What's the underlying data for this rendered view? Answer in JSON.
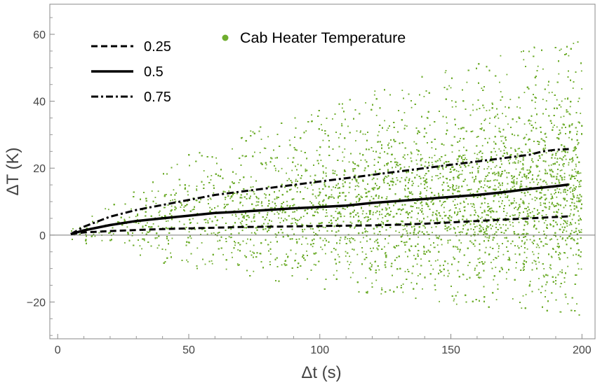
{
  "chart_data": {
    "type": "scatter",
    "title": "",
    "xlabel": "Δt (s)",
    "ylabel": "ΔT (K)",
    "xlim": [
      -3,
      205
    ],
    "ylim": [
      -31,
      69
    ],
    "x_ticks": [
      0,
      50,
      100,
      150,
      200
    ],
    "y_ticks": [
      -20,
      0,
      20,
      40,
      60
    ],
    "x_tick_labels": [
      "0",
      "50",
      "100",
      "150",
      "200"
    ],
    "y_tick_labels": [
      "−20",
      "0",
      "20",
      "40",
      "60"
    ],
    "grid": false,
    "scatter_series": {
      "name": "Cab Heater Temperature",
      "color": "#6fad2e",
      "envelope": {
        "x": [
          0,
          25,
          50,
          75,
          100,
          125,
          150,
          175,
          200
        ],
        "upper": [
          0,
          14,
          24,
          32,
          38,
          44,
          50,
          55,
          60
        ],
        "lower": [
          0,
          -6,
          -10,
          -13,
          -16,
          -18,
          -21,
          -22,
          -24
        ],
        "dense_upper": [
          0,
          9,
          15,
          20,
          24,
          28,
          32,
          35,
          38
        ],
        "dense_lower": [
          0,
          -3,
          -5,
          -7,
          -8,
          -9,
          -10,
          -11,
          -12
        ]
      }
    },
    "quantile_series": [
      {
        "name": "0.25",
        "style": "dashed",
        "x": [
          5,
          10,
          20,
          30,
          40,
          50,
          60,
          70,
          80,
          90,
          100,
          110,
          120,
          130,
          140,
          150,
          160,
          170,
          180,
          190,
          195
        ],
        "y": [
          0.3,
          0.8,
          1.2,
          1.5,
          1.8,
          2.0,
          2.2,
          2.4,
          2.5,
          2.6,
          2.7,
          2.8,
          2.9,
          3.1,
          3.4,
          3.8,
          4.2,
          4.6,
          5.0,
          5.4,
          5.6
        ]
      },
      {
        "name": "0.5",
        "style": "solid",
        "x": [
          5,
          10,
          20,
          30,
          40,
          50,
          60,
          70,
          80,
          90,
          100,
          110,
          120,
          130,
          140,
          150,
          160,
          170,
          180,
          190,
          195
        ],
        "y": [
          0.3,
          1.4,
          3.0,
          4.2,
          5.0,
          5.8,
          6.6,
          7.0,
          7.5,
          8.0,
          8.4,
          8.8,
          9.6,
          10.2,
          10.8,
          11.4,
          12.0,
          12.8,
          13.8,
          14.6,
          15.1
        ]
      },
      {
        "name": "0.75",
        "style": "dashdot",
        "x": [
          5,
          10,
          15,
          20,
          30,
          40,
          50,
          60,
          70,
          80,
          90,
          100,
          110,
          120,
          130,
          140,
          150,
          160,
          170,
          180,
          185,
          190,
          195
        ],
        "y": [
          0.3,
          2.5,
          4.0,
          5.5,
          7.5,
          9.0,
          10.5,
          12.0,
          13.0,
          14.0,
          15.0,
          16.0,
          17.0,
          18.0,
          19.0,
          20.0,
          21.0,
          22.0,
          23.0,
          24.0,
          25.0,
          25.5,
          25.7
        ]
      }
    ],
    "legend": {
      "quantiles": [
        "0.25",
        "0.5",
        "0.75"
      ],
      "scatter_label": "Cab Heater Temperature",
      "placement": "top-left"
    }
  }
}
